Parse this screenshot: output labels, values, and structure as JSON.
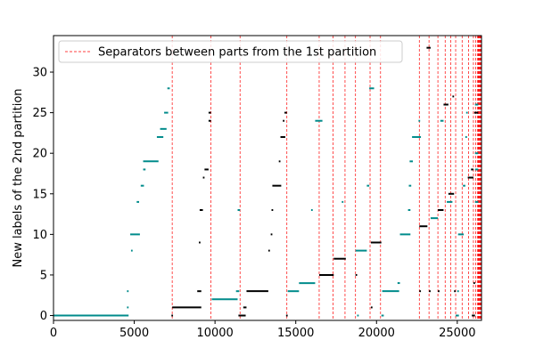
{
  "chart_data": {
    "type": "scatter",
    "title": "",
    "xlabel": "",
    "ylabel": "New labels of the 2nd partition",
    "xlim": [
      0,
      26500
    ],
    "ylim": [
      -0.6,
      34.5
    ],
    "x_ticks": [
      0,
      5000,
      10000,
      15000,
      20000,
      25000
    ],
    "y_ticks": [
      0,
      5,
      10,
      15,
      20,
      25,
      30
    ],
    "grid": false,
    "legend": {
      "placement": "top-left",
      "entries": [
        {
          "label": "Separators between parts from the 1st partition",
          "color": "#ff0000",
          "style": "dashed"
        }
      ]
    },
    "colors": {
      "teal": "#008b8b",
      "black": "#000000",
      "separator": "#ff0000"
    },
    "separators": [
      7350,
      9750,
      11550,
      14450,
      16450,
      17300,
      18050,
      18700,
      19600,
      20250,
      22650,
      23250,
      23800,
      24250,
      24600,
      24900,
      25300,
      25700,
      26000,
      26150,
      26250
    ],
    "series": [
      {
        "color": "teal",
        "segments": [
          [
            0,
            4650,
            0
          ],
          [
            4550,
            4650,
            1
          ],
          [
            4550,
            4650,
            3
          ],
          [
            4750,
            5350,
            10
          ],
          [
            4800,
            4900,
            8
          ],
          [
            5150,
            5300,
            14
          ],
          [
            5400,
            5600,
            16
          ],
          [
            5550,
            5700,
            18
          ],
          [
            5550,
            6500,
            19
          ],
          [
            6400,
            6800,
            22
          ],
          [
            6600,
            7000,
            23
          ],
          [
            6850,
            7100,
            25
          ],
          [
            7050,
            7200,
            28
          ],
          [
            9800,
            11400,
            2
          ],
          [
            11300,
            11500,
            3
          ],
          [
            11400,
            11550,
            13
          ],
          [
            14500,
            15200,
            3
          ],
          [
            15200,
            16200,
            4
          ],
          [
            15950,
            16050,
            13
          ],
          [
            16200,
            16650,
            24
          ],
          [
            17850,
            17950,
            14
          ],
          [
            18800,
            18900,
            0
          ],
          [
            18700,
            19400,
            8
          ],
          [
            19400,
            19550,
            16
          ],
          [
            19550,
            19850,
            28
          ],
          [
            20300,
            20450,
            0
          ],
          [
            20350,
            21400,
            3
          ],
          [
            21300,
            21450,
            4
          ],
          [
            21450,
            22100,
            10
          ],
          [
            21950,
            22100,
            13
          ],
          [
            22000,
            22150,
            16
          ],
          [
            22050,
            22250,
            19
          ],
          [
            22200,
            22750,
            22
          ],
          [
            22600,
            22700,
            24
          ],
          [
            23350,
            23800,
            12
          ],
          [
            23950,
            24150,
            24
          ],
          [
            24350,
            24700,
            14
          ],
          [
            24900,
            25100,
            0
          ],
          [
            25000,
            25100,
            3
          ],
          [
            25050,
            25400,
            10
          ],
          [
            25350,
            25500,
            16
          ],
          [
            25500,
            25600,
            22
          ],
          [
            25550,
            25650,
            25
          ],
          [
            26100,
            26300,
            26
          ],
          [
            26100,
            26300,
            20
          ],
          [
            26100,
            26300,
            18
          ],
          [
            26100,
            26300,
            14
          ]
        ]
      },
      {
        "color": "black",
        "segments": [
          [
            7300,
            7400,
            0
          ],
          [
            7350,
            9150,
            1
          ],
          [
            8900,
            9150,
            3
          ],
          [
            9000,
            9100,
            9
          ],
          [
            9050,
            9250,
            13
          ],
          [
            9250,
            9350,
            17
          ],
          [
            9350,
            9600,
            18
          ],
          [
            9600,
            9750,
            24
          ],
          [
            9600,
            9750,
            25
          ],
          [
            11450,
            11900,
            0
          ],
          [
            11750,
            11950,
            1
          ],
          [
            11950,
            13300,
            3
          ],
          [
            13300,
            13400,
            8
          ],
          [
            13450,
            13550,
            10
          ],
          [
            13500,
            13600,
            13
          ],
          [
            13550,
            14100,
            16
          ],
          [
            13950,
            14050,
            19
          ],
          [
            14050,
            14350,
            22
          ],
          [
            14200,
            14300,
            24
          ],
          [
            14300,
            14450,
            25
          ],
          [
            14400,
            14500,
            0
          ],
          [
            16450,
            17350,
            5
          ],
          [
            17350,
            18100,
            7
          ],
          [
            18700,
            18800,
            5
          ],
          [
            19650,
            19750,
            1
          ],
          [
            19650,
            20300,
            9
          ],
          [
            22650,
            22750,
            3
          ],
          [
            22650,
            23150,
            11
          ],
          [
            23100,
            23350,
            33
          ],
          [
            23250,
            23350,
            3
          ],
          [
            23800,
            23900,
            3
          ],
          [
            23800,
            24150,
            13
          ],
          [
            24150,
            24450,
            26
          ],
          [
            24450,
            24800,
            15
          ],
          [
            24700,
            24800,
            27
          ],
          [
            24800,
            24900,
            3
          ],
          [
            25650,
            26000,
            17
          ],
          [
            25850,
            26000,
            18
          ],
          [
            25900,
            26100,
            0
          ],
          [
            26000,
            26100,
            4
          ],
          [
            26050,
            26300,
            25
          ]
        ]
      }
    ]
  }
}
